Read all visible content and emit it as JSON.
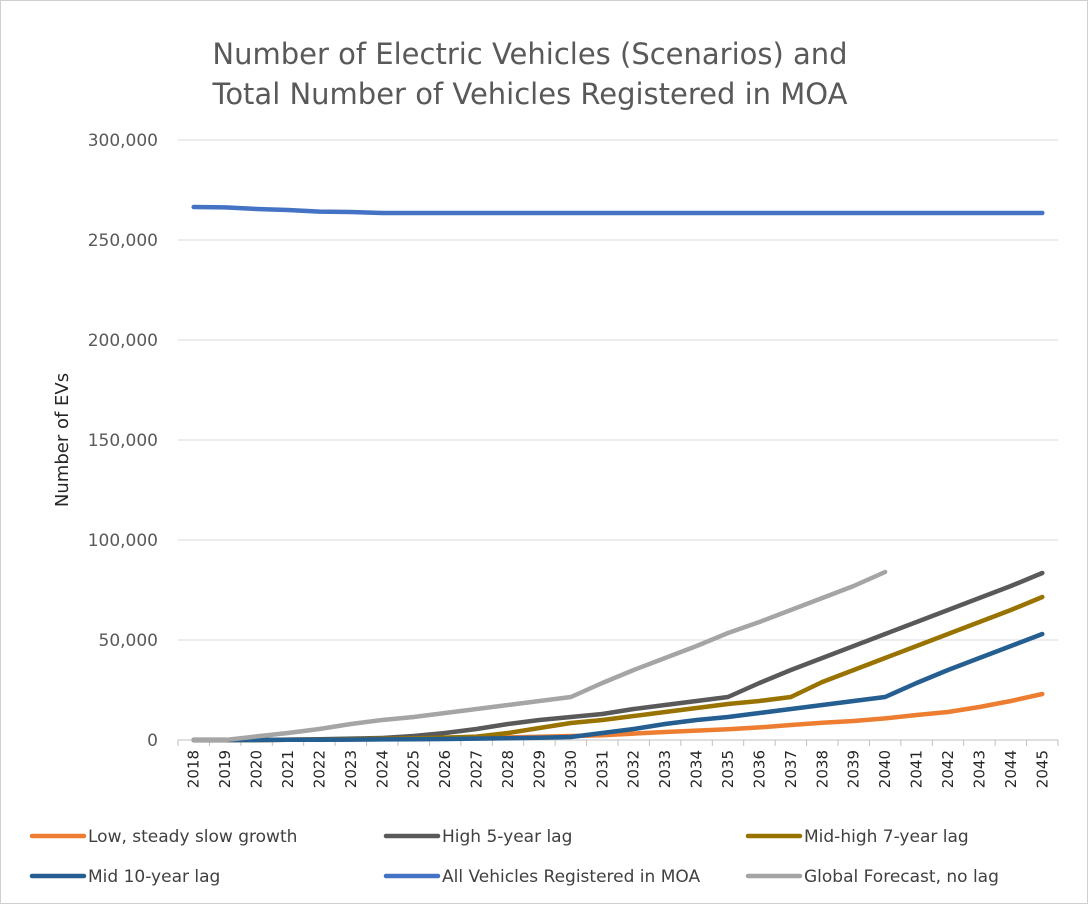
{
  "chart_data": {
    "type": "line",
    "title_lines": [
      "Number of Electric Vehicles (Scenarios) and",
      "Total Number of Vehicles Registered in MOA"
    ],
    "xlabel": "",
    "ylabel": "Number of EVs",
    "ylim": [
      0,
      300000
    ],
    "yticks": [
      0,
      50000,
      100000,
      150000,
      200000,
      250000,
      300000
    ],
    "ytick_labels": [
      "0",
      "50,000",
      "100,000",
      "150,000",
      "200,000",
      "250,000",
      "300,000"
    ],
    "categories": [
      "2018",
      "2019",
      "2020",
      "2021",
      "2022",
      "2023",
      "2024",
      "2025",
      "2026",
      "2027",
      "2028",
      "2029",
      "2030",
      "2031",
      "2032",
      "2033",
      "2034",
      "2035",
      "2036",
      "2037",
      "2038",
      "2039",
      "2040",
      "2041",
      "2042",
      "2043",
      "2044",
      "2045"
    ],
    "grid": true,
    "legend_position": "bottom",
    "series": [
      {
        "name": "Low, steady slow growth",
        "color": "#ED7D31",
        "values": [
          0,
          0,
          0,
          100,
          200,
          300,
          400,
          500,
          700,
          1000,
          1300,
          1600,
          2000,
          2400,
          3200,
          4000,
          4700,
          5400,
          6300,
          7500,
          8600,
          9500,
          10800,
          12500,
          14000,
          16500,
          19500,
          23000
        ]
      },
      {
        "name": "High 5-year lag",
        "color": "#595959",
        "values": [
          0,
          0,
          0,
          200,
          400,
          700,
          1000,
          2000,
          3500,
          5500,
          8000,
          10000,
          11500,
          13000,
          15500,
          17500,
          19500,
          21500,
          28500,
          35000,
          41000,
          47000,
          53000,
          59000,
          65000,
          71000,
          77000,
          83500
        ]
      },
      {
        "name": "Mid-high 7-year lag",
        "color": "#997300",
        "values": [
          0,
          0,
          0,
          100,
          200,
          400,
          600,
          800,
          1200,
          1700,
          3500,
          6000,
          8500,
          10000,
          12000,
          14000,
          16000,
          18000,
          19500,
          21500,
          29000,
          35000,
          41000,
          47000,
          53000,
          59000,
          65000,
          71500
        ]
      },
      {
        "name": "Mid 10-year lag",
        "color": "#255E91",
        "values": [
          0,
          0,
          0,
          100,
          150,
          200,
          300,
          400,
          500,
          700,
          900,
          1100,
          1500,
          3500,
          5500,
          8000,
          10000,
          11500,
          13500,
          15500,
          17500,
          19500,
          21500,
          28500,
          35000,
          41000,
          47000,
          53000
        ]
      },
      {
        "name": "All Vehicles Registered in MOA",
        "color": "#4472C4",
        "values": [
          266500,
          266300,
          265500,
          265000,
          264200,
          264000,
          263500,
          263500,
          263500,
          263500,
          263500,
          263500,
          263500,
          263500,
          263500,
          263500,
          263500,
          263500,
          263500,
          263500,
          263500,
          263500,
          263500,
          263500,
          263500,
          263500,
          263500,
          263500
        ]
      },
      {
        "name": "Global Forecast, no lag",
        "color": "#A5A5A5",
        "values": [
          0,
          0,
          1800,
          3500,
          5500,
          8000,
          10000,
          11500,
          13500,
          15500,
          17500,
          19500,
          21500,
          28500,
          35000,
          41000,
          47000,
          53500,
          59000,
          65000,
          71000,
          77000,
          84000,
          null,
          null,
          null,
          null,
          null
        ]
      }
    ]
  }
}
